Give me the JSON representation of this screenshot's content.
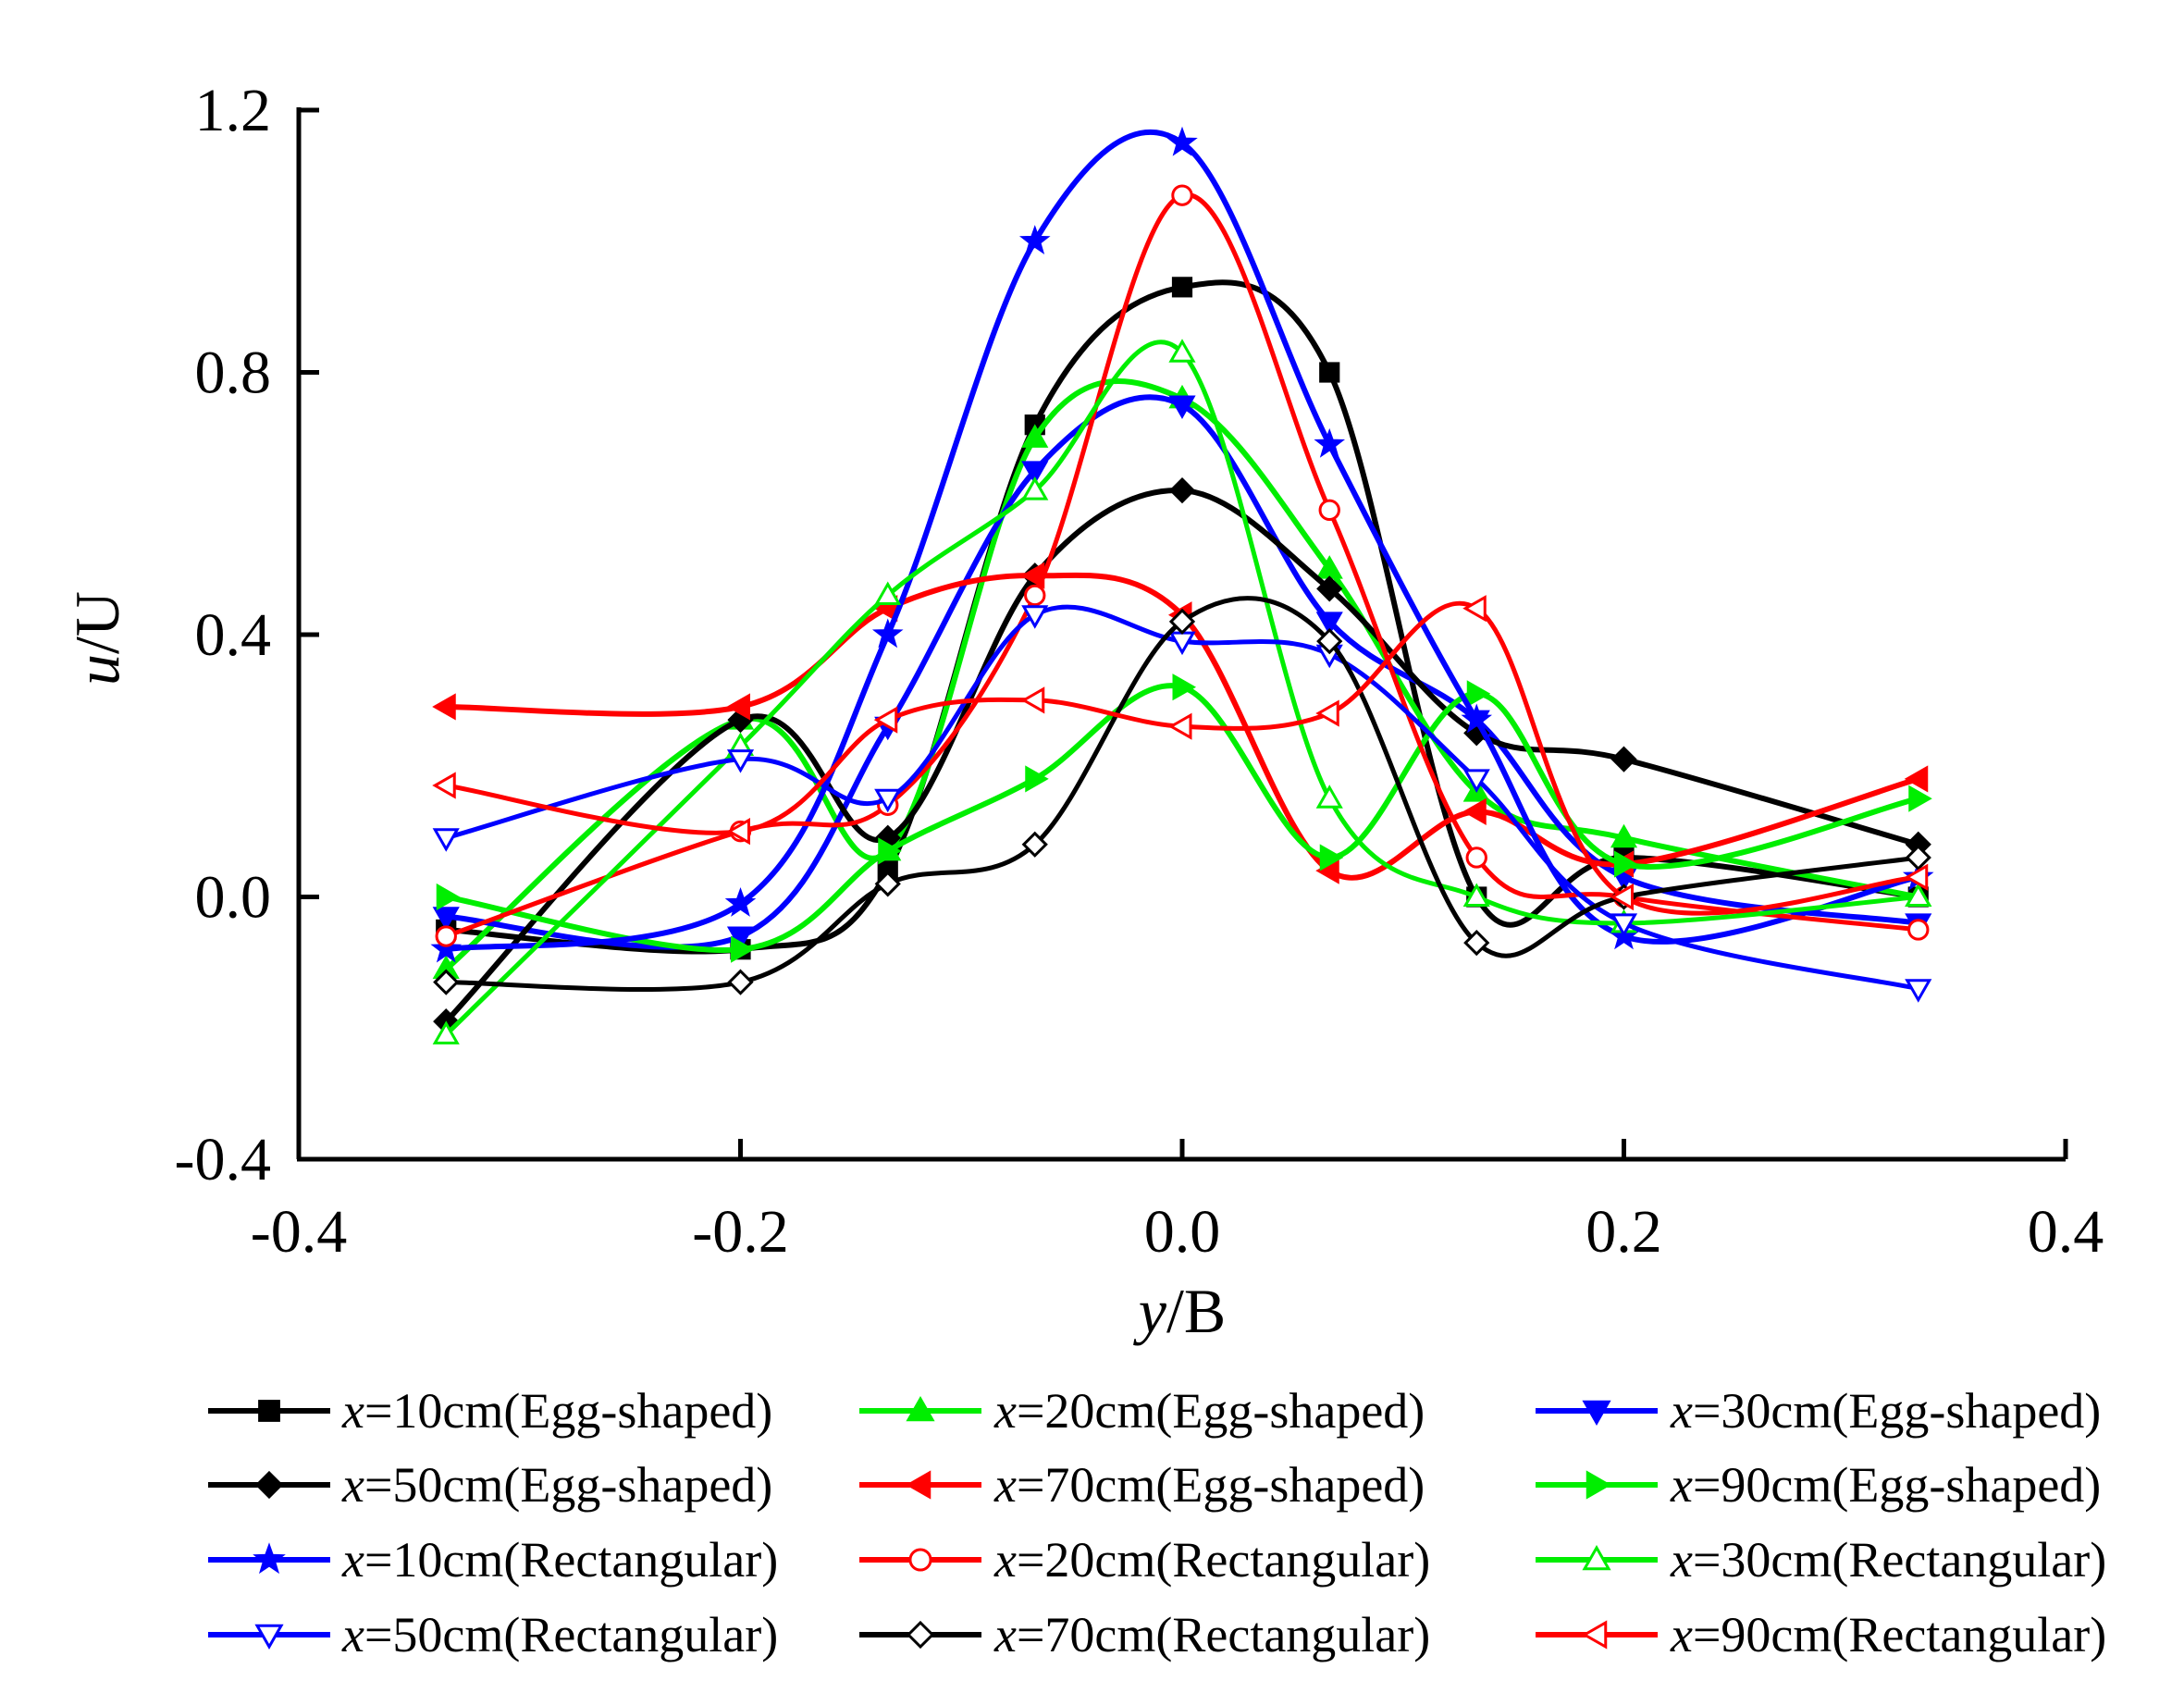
{
  "chart_data": {
    "type": "line",
    "xlabel": "y/B",
    "ylabel": "u/U",
    "xlim": [
      -0.4,
      0.4
    ],
    "ylim": [
      -0.4,
      1.2
    ],
    "xticks": [
      "-0.4",
      "-0.2",
      "0.0",
      "0.2",
      "0.4"
    ],
    "yticks": [
      "-0.4",
      "0.0",
      "0.4",
      "0.8",
      "1.2"
    ],
    "grid": false,
    "legend_position": "bottom",
    "x": [
      -0.3333,
      -0.2,
      -0.1333,
      -0.0667,
      0.0,
      0.0667,
      0.1333,
      0.2,
      0.3333
    ],
    "series": [
      {
        "name": "x=10cm(Egg-shaped)",
        "color": "#000000",
        "marker": "square",
        "filled": true,
        "values": [
          -0.05,
          -0.08,
          0.04,
          0.72,
          0.93,
          0.8,
          0.0,
          0.06,
          0.0
        ]
      },
      {
        "name": "x=20cm(Egg-shaped)",
        "color": "#00ee00",
        "marker": "triangle-up",
        "filled": true,
        "values": [
          -0.11,
          0.27,
          0.07,
          0.7,
          0.76,
          0.5,
          0.16,
          0.09,
          0.0
        ]
      },
      {
        "name": "x=30cm(Egg-shaped)",
        "color": "#0000ff",
        "marker": "triangle-down",
        "filled": true,
        "values": [
          -0.03,
          -0.06,
          0.26,
          0.65,
          0.75,
          0.42,
          0.27,
          0.03,
          -0.04
        ]
      },
      {
        "name": "x=50cm(Egg-shaped)",
        "color": "#000000",
        "marker": "diamond",
        "filled": true,
        "values": [
          -0.19,
          0.27,
          0.09,
          0.49,
          0.62,
          0.47,
          0.25,
          0.21,
          0.08
        ]
      },
      {
        "name": "x=70cm(Egg-shaped)",
        "color": "#ff0000",
        "marker": "triangle-left",
        "filled": true,
        "values": [
          0.29,
          0.29,
          0.44,
          0.49,
          0.43,
          0.04,
          0.13,
          0.05,
          0.18
        ]
      },
      {
        "name": "x=90cm(Egg-shaped)",
        "color": "#00ee00",
        "marker": "triangle-right",
        "filled": true,
        "values": [
          0.0,
          -0.08,
          0.07,
          0.18,
          0.32,
          0.06,
          0.31,
          0.05,
          0.15
        ]
      },
      {
        "name": "x=10cm(Rectangular)",
        "color": "#0000ff",
        "marker": "star",
        "filled": true,
        "values": [
          -0.08,
          -0.01,
          0.4,
          1.0,
          1.15,
          0.69,
          0.27,
          -0.06,
          0.03
        ]
      },
      {
        "name": "x=20cm(Rectangular)",
        "color": "#ff0000",
        "marker": "circle",
        "filled": false,
        "values": [
          -0.06,
          0.1,
          0.14,
          0.46,
          1.07,
          0.59,
          0.06,
          0.0,
          -0.05
        ]
      },
      {
        "name": "x=30cm(Rectangular)",
        "color": "#00ee00",
        "marker": "triangle-up",
        "filled": false,
        "values": [
          -0.21,
          0.23,
          0.46,
          0.62,
          0.83,
          0.15,
          0.0,
          -0.04,
          0.0
        ]
      },
      {
        "name": "x=50cm(Rectangular)",
        "color": "#0000ff",
        "marker": "triangle-down",
        "filled": false,
        "values": [
          0.09,
          0.21,
          0.15,
          0.43,
          0.39,
          0.37,
          0.18,
          -0.04,
          -0.14
        ]
      },
      {
        "name": "x=70cm(Rectangular)",
        "color": "#000000",
        "marker": "diamond",
        "filled": false,
        "values": [
          -0.13,
          -0.13,
          0.02,
          0.08,
          0.42,
          0.39,
          -0.07,
          0.0,
          0.06
        ]
      },
      {
        "name": "x=90cm(Rectangular)",
        "color": "#ff0000",
        "marker": "triangle-left",
        "filled": false,
        "values": [
          0.17,
          0.1,
          0.27,
          0.3,
          0.26,
          0.28,
          0.44,
          0.0,
          0.03
        ]
      }
    ]
  }
}
